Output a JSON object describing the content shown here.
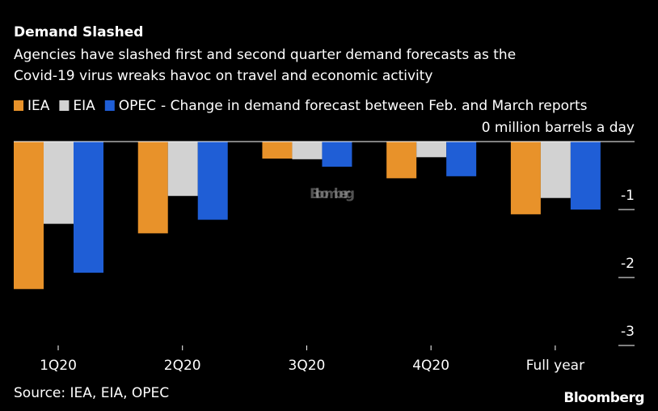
{
  "chart_data": {
    "type": "bar",
    "title": "Demand Slashed",
    "subtitle": [
      "Agencies have slashed first and second quarter demand forecasts as the",
      "Covid-19 virus wreaks havoc on travel and economic activity"
    ],
    "legend_note": "- Change in demand forecast between Feb. and March reports",
    "categories": [
      "1Q20",
      "2Q20",
      "3Q20",
      "4Q20",
      "Full year"
    ],
    "series": [
      {
        "name": "IEA",
        "color": "#e8922a",
        "values": [
          -2.17,
          -1.35,
          -0.25,
          -0.54,
          -1.07
        ]
      },
      {
        "name": "EIA",
        "color": "#d2d2d2",
        "values": [
          -1.21,
          -0.8,
          -0.26,
          -0.23,
          -0.83
        ]
      },
      {
        "name": "OPEC",
        "color": "#1f5ed6",
        "values": [
          -1.93,
          -1.15,
          -0.37,
          -0.51,
          -1.0
        ]
      }
    ],
    "ylim": [
      -3,
      0
    ],
    "yticks": [
      {
        "value": 0,
        "label": "0 million barrels a day"
      },
      -1,
      -2,
      -3
    ],
    "source": "Source: IEA, EIA, OPEC",
    "watermark": "Bloomberg",
    "logo": "Bloomberg"
  }
}
